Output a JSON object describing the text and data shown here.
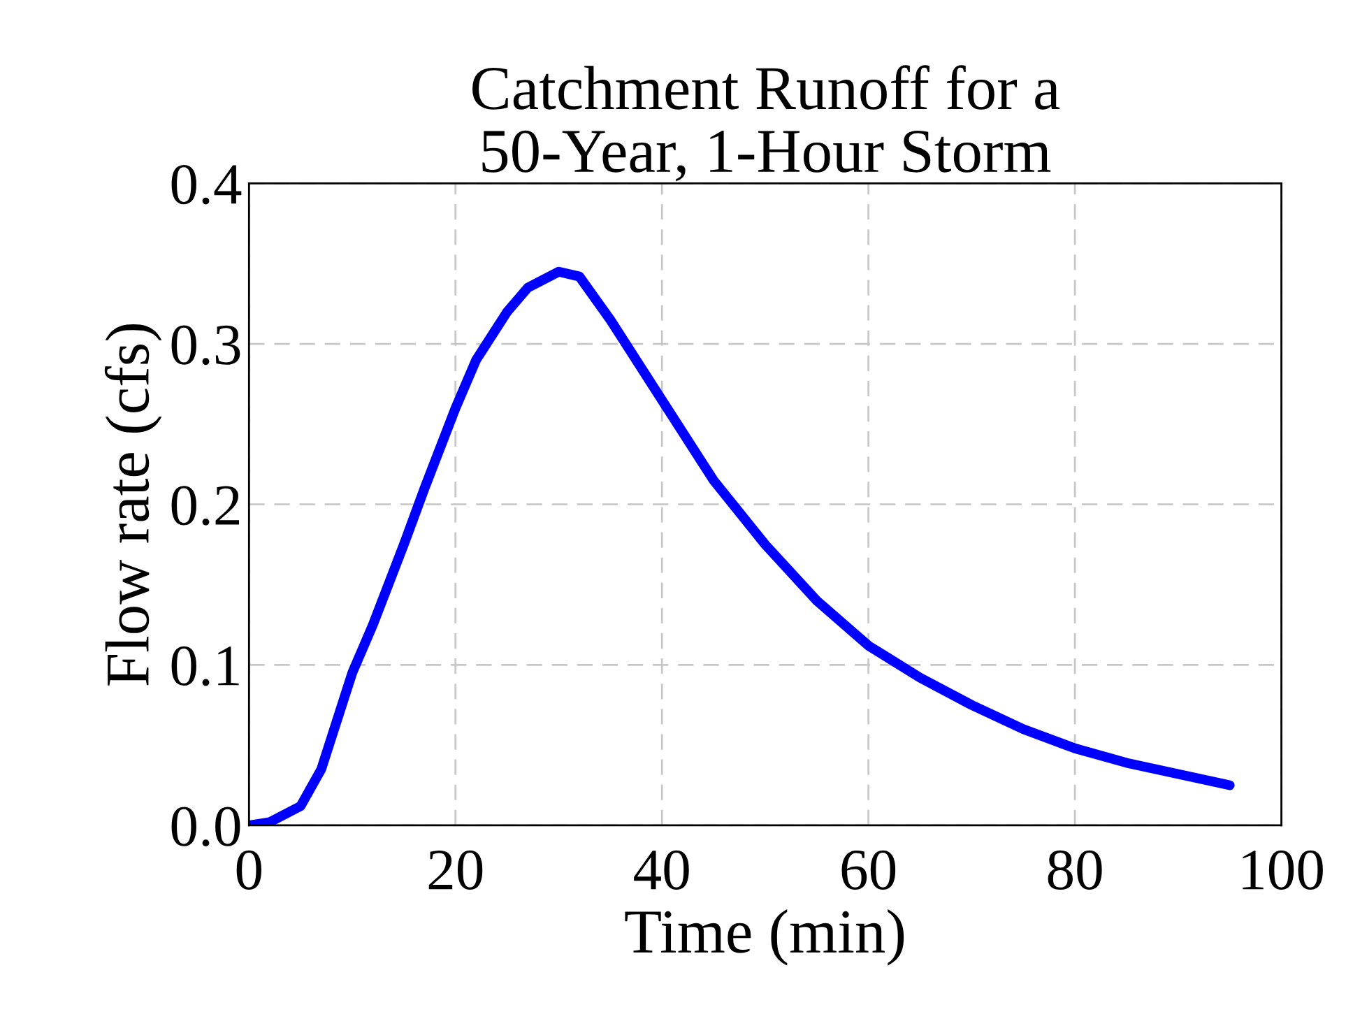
{
  "chart_data": {
    "type": "line",
    "title": "Catchment Runoff for a\n50-Year, 1-Hour Storm",
    "xlabel": "Time (min)",
    "ylabel": "Flow rate (cfs)",
    "series": [
      {
        "color": "#0000ff",
        "x": [
          0,
          2,
          5,
          7,
          10,
          12,
          15,
          17,
          20,
          22,
          25,
          27,
          30,
          32,
          35,
          37,
          40,
          45,
          50,
          55,
          60,
          65,
          70,
          75,
          80,
          85,
          90,
          95
        ],
        "values": [
          0,
          0.002,
          0.012,
          0.035,
          0.095,
          0.125,
          0.175,
          0.21,
          0.26,
          0.29,
          0.32,
          0.335,
          0.345,
          0.342,
          0.315,
          0.295,
          0.265,
          0.215,
          0.175,
          0.14,
          0.112,
          0.092,
          0.075,
          0.06,
          0.048,
          0.039,
          0.032,
          0.025
        ]
      }
    ],
    "xlim": [
      0,
      100
    ],
    "xticks": [
      0,
      20,
      40,
      60,
      80,
      100
    ],
    "ylim": [
      0,
      0.4
    ],
    "yticks": [
      {
        "value": 0,
        "label": "0.0"
      },
      {
        "value": 0.1,
        "label": "0.1"
      },
      {
        "value": 0.2,
        "label": "0.2"
      },
      {
        "value": 0.3,
        "label": "0.3"
      },
      {
        "value": 0.4,
        "label": "0.4"
      }
    ],
    "grid": true,
    "line_style": "solid",
    "marker": "none"
  }
}
